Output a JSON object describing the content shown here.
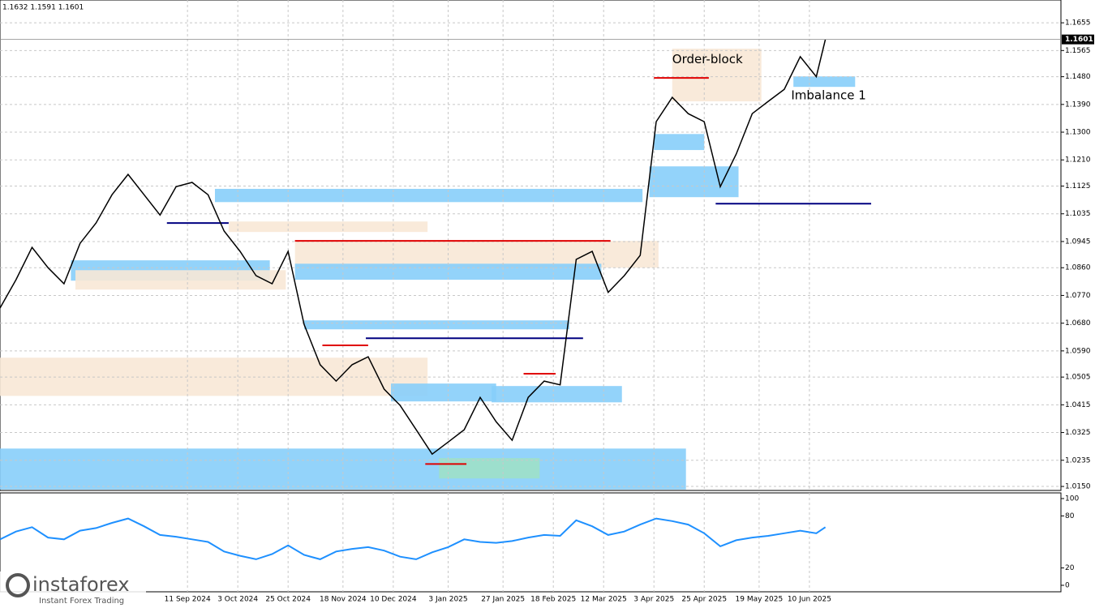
{
  "chart_data": {
    "type": "line",
    "header": "1.1632 1.1591 1.1601",
    "last_price": 1.1601,
    "annotations": [
      {
        "text": "Order-block",
        "x": "2025-04-11",
        "y": 1.1535
      },
      {
        "text": "Imbalance 1",
        "x": "2025-06-02",
        "y": 1.1418
      }
    ],
    "watermark": {
      "brand": "instaforex",
      "tagline": "Instant Forex Trading"
    },
    "x": [
      "2024-06-21",
      "2024-06-28",
      "2024-07-05",
      "2024-07-12",
      "2024-07-19",
      "2024-07-26",
      "2024-08-02",
      "2024-08-09",
      "2024-08-16",
      "2024-08-23",
      "2024-08-30",
      "2024-09-06",
      "2024-09-13",
      "2024-09-20",
      "2024-09-27",
      "2024-10-04",
      "2024-10-11",
      "2024-10-18",
      "2024-10-25",
      "2024-11-01",
      "2024-11-08",
      "2024-11-15",
      "2024-11-22",
      "2024-11-29",
      "2024-12-06",
      "2024-12-13",
      "2024-12-20",
      "2024-12-27",
      "2025-01-03",
      "2025-01-10",
      "2025-01-17",
      "2025-01-24",
      "2025-01-31",
      "2025-02-07",
      "2025-02-14",
      "2025-02-21",
      "2025-02-28",
      "2025-03-07",
      "2025-03-14",
      "2025-03-21",
      "2025-03-28",
      "2025-04-04",
      "2025-04-11",
      "2025-04-18",
      "2025-04-25",
      "2025-05-02",
      "2025-05-09",
      "2025-05-16",
      "2025-05-23",
      "2025-05-30",
      "2025-06-06",
      "2025-06-13",
      "2025-06-17"
    ],
    "series": [
      {
        "color": "#000000",
        "values": [
          1.0729,
          1.0821,
          1.0926,
          1.086,
          1.0808,
          1.0939,
          1.1005,
          1.1097,
          1.1163,
          1.1097,
          1.1031,
          1.1123,
          1.1137,
          1.1097,
          1.0979,
          1.0913,
          1.0834,
          1.0808,
          1.0913,
          1.0676,
          1.0545,
          1.0492,
          1.0545,
          1.0571,
          1.0466,
          1.0413,
          1.0334,
          1.0255,
          1.0294,
          1.0334,
          1.0439,
          1.036,
          1.03,
          1.0439,
          1.0492,
          1.048,
          1.0887,
          1.0913,
          1.078,
          1.0834,
          1.09,
          1.1334,
          1.1413,
          1.136,
          1.1334,
          1.1123,
          1.1229,
          1.136,
          1.14,
          1.1439,
          1.1545,
          1.148,
          1.1601
        ]
      },
      {
        "color": "#1e90ff",
        "axis": "y2",
        "values": [
          53,
          62,
          67,
          55,
          53,
          63,
          66,
          72,
          77,
          68,
          58,
          56,
          53,
          50,
          39,
          34,
          30,
          36,
          46,
          35,
          30,
          39,
          42,
          44,
          40,
          33,
          30,
          38,
          44,
          53,
          50,
          49,
          51,
          55,
          58,
          57,
          75,
          68,
          58,
          62,
          70,
          77,
          74,
          70,
          60,
          45,
          52,
          55,
          57,
          60,
          63,
          60,
          67
        ]
      }
    ],
    "xlim": [
      "2024-06-21",
      "2025-09-28"
    ],
    "xticks": [
      {
        "value": "2024-09-11",
        "label": "11 Sep 2024"
      },
      {
        "value": "2024-10-03",
        "label": "3 Oct 2024"
      },
      {
        "value": "2024-10-25",
        "label": "25 Oct 2024"
      },
      {
        "value": "2024-11-18",
        "label": "18 Nov 2024"
      },
      {
        "value": "2024-12-10",
        "label": "10 Dec 2024"
      },
      {
        "value": "2025-01-03",
        "label": "3 Jan 2025"
      },
      {
        "value": "2025-01-27",
        "label": "27 Jan 2025"
      },
      {
        "value": "2025-02-18",
        "label": "18 Feb 2025"
      },
      {
        "value": "2025-03-12",
        "label": "12 Mar 2025"
      },
      {
        "value": "2025-04-03",
        "label": "3 Apr 2025"
      },
      {
        "value": "2025-04-25",
        "label": "25 Apr 2025"
      },
      {
        "value": "2025-05-19",
        "label": "19 May 2025"
      },
      {
        "value": "2025-06-10",
        "label": "10 Jun 2025"
      }
    ],
    "ylim": [
      1.0137,
      1.1729
    ],
    "yticks": [
      1.1655,
      1.1565,
      {
        "value": 1.148,
        "label": "1.1480"
      },
      {
        "value": 1.139,
        "label": "1.1390"
      },
      {
        "value": 1.13,
        "label": "1.1300"
      },
      {
        "value": 1.121,
        "label": "1.1210"
      },
      1.1125,
      1.1035,
      1.0945,
      {
        "value": 1.086,
        "label": "1.0860"
      },
      {
        "value": 1.077,
        "label": "1.0770"
      },
      {
        "value": 1.068,
        "label": "1.0680"
      },
      {
        "value": 1.059,
        "label": "1.0590"
      },
      1.0505,
      1.0415,
      1.0325,
      1.0235,
      {
        "value": 1.015,
        "label": "1.0150"
      }
    ],
    "y2lim": [
      0,
      100
    ],
    "y2ticks": [
      100,
      80,
      20,
      0
    ],
    "grid": true,
    "zones": [
      {
        "x": [
          "2024-06-21",
          "2025-04-17"
        ],
        "y": [
          1.014,
          1.0273
        ],
        "color": "#87cefa"
      },
      {
        "x": [
          "2024-06-21",
          "2024-12-25"
        ],
        "y": [
          1.0444,
          1.0568
        ],
        "color": "#f8e8d6"
      },
      {
        "x": [
          "2024-11-01",
          "2025-02-25"
        ],
        "y": [
          1.066,
          1.0689
        ],
        "color": "#87cefa"
      },
      {
        "x": [
          "2024-10-28",
          "2025-04-05"
        ],
        "y": [
          1.086,
          1.0947
        ],
        "color": "#f8e8d6"
      },
      {
        "x": [
          "2024-10-28",
          "2025-03-11"
        ],
        "y": [
          1.0821,
          1.0873
        ],
        "color": "#87cefa"
      },
      {
        "x": [
          "2024-09-23",
          "2025-03-29"
        ],
        "y": [
          1.1073,
          1.1116
        ],
        "color": "#87cefa"
      },
      {
        "x": [
          "2024-09-29",
          "2024-12-25"
        ],
        "y": [
          1.0976,
          1.101
        ],
        "color": "#f8e8d6"
      },
      {
        "x": [
          "2024-07-22",
          "2024-10-17"
        ],
        "y": [
          1.0818,
          1.0884
        ],
        "color": "#87cefa"
      },
      {
        "x": [
          "2024-07-24",
          "2024-10-24"
        ],
        "y": [
          1.0789,
          1.0852
        ],
        "color": "#f8e8d6"
      },
      {
        "x": [
          "2025-04-01",
          "2025-05-10"
        ],
        "y": [
          1.1089,
          1.1189
        ],
        "color": "#87cefa"
      },
      {
        "x": [
          "2025-04-03",
          "2025-04-25"
        ],
        "y": [
          1.1242,
          1.1294
        ],
        "color": "#87cefa"
      },
      {
        "x": [
          "2025-04-11",
          "2025-05-20"
        ],
        "y": [
          1.14,
          1.1571
        ],
        "color": "#f8e8d6"
      },
      {
        "x": [
          "2025-06-03",
          "2025-06-30"
        ],
        "y": [
          1.1447,
          1.1481
        ],
        "color": "#87cefa"
      },
      {
        "x": [
          "2025-01-22",
          "2025-03-20"
        ],
        "y": [
          1.0423,
          1.0476
        ],
        "color": "#87cefa"
      },
      {
        "x": [
          "2024-12-09",
          "2025-01-24"
        ],
        "y": [
          1.0426,
          1.0484
        ],
        "color": "#87cefa"
      },
      {
        "x": [
          "2024-12-30",
          "2025-02-12"
        ],
        "y": [
          1.0176,
          1.0242
        ],
        "color": "#9fe0c8"
      }
    ],
    "levels": [
      {
        "x": [
          "2024-10-28",
          "2025-03-15"
        ],
        "y": 1.0947,
        "color": "#e00000"
      },
      {
        "x": [
          "2024-11-28",
          "2025-03-03"
        ],
        "y": 1.0631,
        "color": "#000080"
      },
      {
        "x": [
          "2025-04-30",
          "2025-07-07"
        ],
        "y": 1.1068,
        "color": "#000080"
      },
      {
        "x": [
          "2025-04-03",
          "2025-04-27"
        ],
        "y": 1.1476,
        "color": "#e00000"
      },
      {
        "x": [
          "2024-09-02",
          "2024-09-29"
        ],
        "y": 1.1005,
        "color": "#000080"
      },
      {
        "x": [
          "2024-11-09",
          "2024-11-29"
        ],
        "y": 1.0608,
        "color": "#e00000"
      },
      {
        "x": [
          "2024-12-24",
          "2025-01-11"
        ],
        "y": 1.0223,
        "color": "#e00000"
      },
      {
        "x": [
          "2025-02-05",
          "2025-02-19"
        ],
        "y": 1.0516,
        "color": "#e00000"
      }
    ]
  }
}
